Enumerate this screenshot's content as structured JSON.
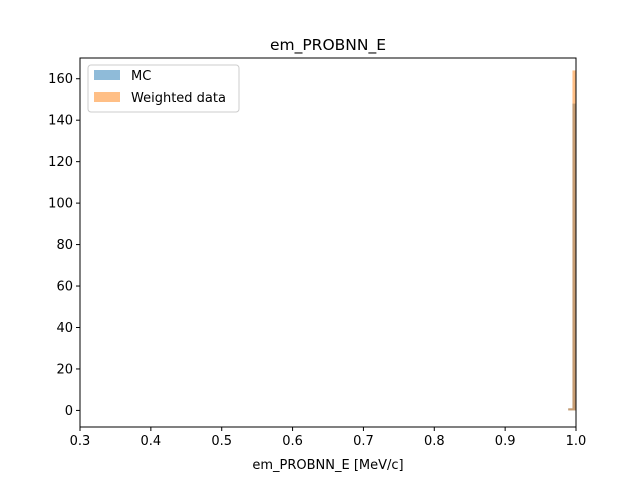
{
  "chart_data": {
    "type": "histogram",
    "title": "em_PROBNN_E",
    "xlabel": "em_PROBNN_E [MeV/c]",
    "ylabel": "",
    "xlim": [
      0.3,
      1.0
    ],
    "ylim": [
      -8,
      170
    ],
    "x_ticks": [
      "0.3",
      "0.4",
      "0.5",
      "0.6",
      "0.7",
      "0.8",
      "0.9",
      "1.0"
    ],
    "x_tick_values": [
      0.3,
      0.4,
      0.5,
      0.6,
      0.7,
      0.8,
      0.9,
      1.0
    ],
    "y_ticks": [
      "0",
      "20",
      "40",
      "60",
      "80",
      "100",
      "120",
      "140",
      "160"
    ],
    "y_tick_values": [
      0,
      20,
      40,
      60,
      80,
      100,
      120,
      140,
      160
    ],
    "grid": false,
    "legend_position": "upper-left",
    "series": [
      {
        "name": "MC",
        "color": "#1f77b4",
        "opacity": 0.5,
        "bins": [
          {
            "x0": 0.989,
            "x1": 0.995,
            "value": 1
          },
          {
            "x0": 0.995,
            "x1": 1.0,
            "value": 148
          }
        ]
      },
      {
        "name": "Weighted data",
        "color": "#ff7f0e",
        "opacity": 0.5,
        "bins": [
          {
            "x0": 0.989,
            "x1": 0.995,
            "value": 1
          },
          {
            "x0": 0.995,
            "x1": 1.0,
            "value": 164
          }
        ]
      }
    ]
  }
}
